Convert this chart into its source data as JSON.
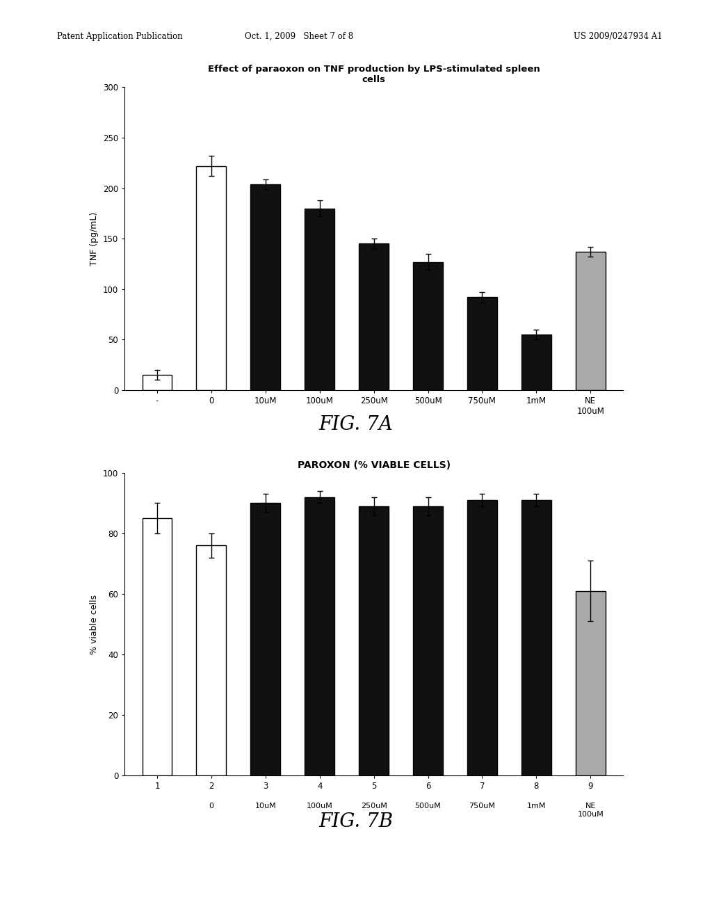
{
  "fig7a": {
    "title": "Effect of paraoxon on TNF production by LPS-stimulated spleen\ncells",
    "ylabel": "TNF (pg/mL)",
    "ylim": [
      0,
      300
    ],
    "yticks": [
      0,
      50,
      100,
      150,
      200,
      250,
      300
    ],
    "xlabels": [
      "-",
      "0",
      "10uM",
      "100uM",
      "250uM",
      "500uM",
      "750uM",
      "1mM",
      "NE\n100uM"
    ],
    "values": [
      15,
      222,
      204,
      180,
      145,
      127,
      92,
      55,
      137
    ],
    "errors": [
      5,
      10,
      5,
      8,
      5,
      8,
      5,
      5,
      5
    ],
    "colors": [
      "#ffffff",
      "#ffffff",
      "#111111",
      "#111111",
      "#111111",
      "#111111",
      "#111111",
      "#111111",
      "#aaaaaa"
    ],
    "edgecolors": [
      "#000000",
      "#000000",
      "#000000",
      "#000000",
      "#000000",
      "#000000",
      "#000000",
      "#000000",
      "#000000"
    ],
    "figcaption": "FIG. 7A"
  },
  "fig7b": {
    "title": "PAROXON (% VIABLE CELLS)",
    "ylabel": "% viable cells",
    "ylim": [
      0,
      100
    ],
    "yticks": [
      0,
      20,
      40,
      60,
      80,
      100
    ],
    "xlabels_top": [
      "1",
      "2",
      "3",
      "4",
      "5",
      "6",
      "7",
      "8",
      "9"
    ],
    "xlabels_bot": [
      "",
      "0",
      "10uM",
      "100uM",
      "250uM",
      "500uM",
      "750uM",
      "1mM",
      "NE\n100uM"
    ],
    "values": [
      85,
      76,
      90,
      92,
      89,
      89,
      91,
      91,
      61
    ],
    "errors": [
      5,
      4,
      3,
      2,
      3,
      3,
      2,
      2,
      10
    ],
    "colors": [
      "#ffffff",
      "#ffffff",
      "#111111",
      "#111111",
      "#111111",
      "#111111",
      "#111111",
      "#111111",
      "#aaaaaa"
    ],
    "edgecolors": [
      "#000000",
      "#000000",
      "#000000",
      "#000000",
      "#000000",
      "#000000",
      "#000000",
      "#000000",
      "#000000"
    ],
    "figcaption": "FIG. 7B"
  },
  "header_left": "Patent Application Publication",
  "header_mid": "Oct. 1, 2009   Sheet 7 of 8",
  "header_right": "US 2009/0247934 A1",
  "background_color": "#ffffff",
  "bar_width": 0.55
}
